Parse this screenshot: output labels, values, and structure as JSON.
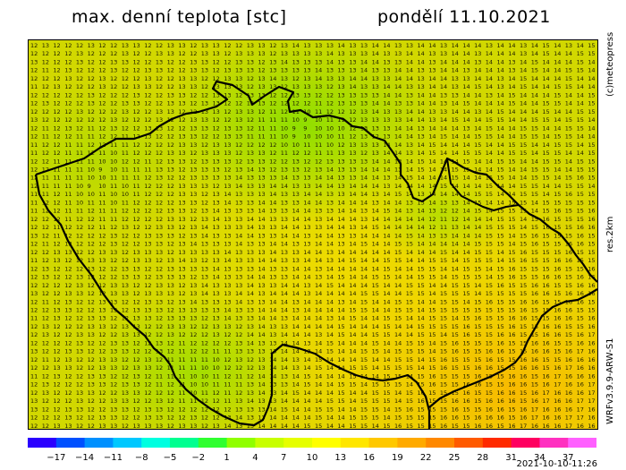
{
  "header": {
    "title": "max. denní teplota [stc]",
    "date": "pondělí 11.10.2021"
  },
  "side_labels": {
    "credit": "(c)meteopress",
    "resolution": "res.2km",
    "model": "WRFv3.9.9-ARW-S1"
  },
  "legend": {
    "ticks": [
      "−17",
      "−14",
      "−11",
      "−8",
      "−5",
      "−2",
      "1",
      "4",
      "7",
      "10",
      "13",
      "16",
      "19",
      "22",
      "25",
      "28",
      "31",
      "34",
      "37"
    ],
    "colors": [
      "#2a00ff",
      "#0050ff",
      "#0090ff",
      "#00c8ff",
      "#00ffe0",
      "#00ff90",
      "#30ff30",
      "#90ff00",
      "#c8ff00",
      "#e6ff00",
      "#ffff00",
      "#ffe600",
      "#ffc800",
      "#ffaa00",
      "#ff8800",
      "#ff5a00",
      "#ff2a00",
      "#ff0060",
      "#ff30c0",
      "#ff60ff"
    ]
  },
  "run_stamp": "2021-10-10-11:26"
}
